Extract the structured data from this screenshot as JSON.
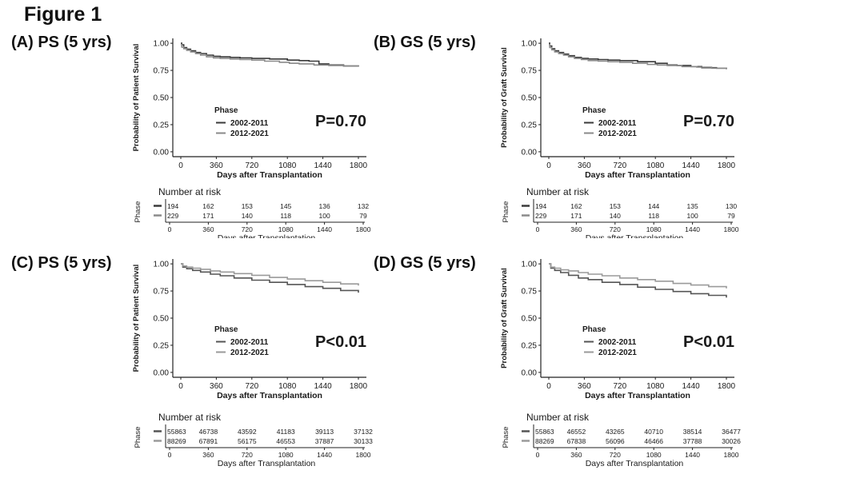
{
  "figure_title": "Figure 1",
  "chart_data": [
    {
      "type": "line",
      "panel_label": "(A) PS (5 yrs)",
      "ylabel": "Probability of Patient Survival",
      "xlabel": "Days after Transplantation",
      "xlim": [
        0,
        1800
      ],
      "ylim": [
        0,
        1
      ],
      "x_ticks": [
        "0",
        "360",
        "720",
        "1080",
        "1440",
        "1800"
      ],
      "y_ticks": [
        "0.00",
        "0.25",
        "0.50",
        "0.75",
        "1.00"
      ],
      "legend_title": "Phase",
      "p_value": "P=0.70",
      "series": [
        {
          "name": "2002-2011",
          "color": "#3a3a3a",
          "points": [
            [
              0,
              1.0
            ],
            [
              10,
              0.985
            ],
            [
              30,
              0.96
            ],
            [
              60,
              0.945
            ],
            [
              100,
              0.93
            ],
            [
              150,
              0.915
            ],
            [
              200,
              0.905
            ],
            [
              260,
              0.89
            ],
            [
              330,
              0.88
            ],
            [
              400,
              0.875
            ],
            [
              500,
              0.87
            ],
            [
              600,
              0.865
            ],
            [
              720,
              0.86
            ],
            [
              900,
              0.855
            ],
            [
              1080,
              0.845
            ],
            [
              1200,
              0.84
            ],
            [
              1300,
              0.835
            ],
            [
              1400,
              0.81
            ],
            [
              1500,
              0.8
            ],
            [
              1650,
              0.79
            ],
            [
              1800,
              0.785
            ]
          ]
        },
        {
          "name": "2012-2021",
          "color": "#8a8a8a",
          "points": [
            [
              0,
              0.99
            ],
            [
              10,
              0.965
            ],
            [
              30,
              0.95
            ],
            [
              60,
              0.935
            ],
            [
              100,
              0.92
            ],
            [
              150,
              0.905
            ],
            [
              200,
              0.89
            ],
            [
              260,
              0.875
            ],
            [
              330,
              0.865
            ],
            [
              400,
              0.86
            ],
            [
              500,
              0.855
            ],
            [
              600,
              0.85
            ],
            [
              720,
              0.845
            ],
            [
              850,
              0.835
            ],
            [
              1000,
              0.825
            ],
            [
              1100,
              0.815
            ],
            [
              1200,
              0.81
            ],
            [
              1350,
              0.8
            ],
            [
              1500,
              0.795
            ],
            [
              1650,
              0.79
            ],
            [
              1800,
              0.785
            ]
          ]
        }
      ],
      "risk_table": {
        "title": "Number at risk",
        "ylabel": "Phase",
        "xlabel": "Days after Transplantation",
        "ticks": [
          "0",
          "360",
          "720",
          "1080",
          "1440",
          "1800"
        ],
        "rows": [
          [
            "194",
            "162",
            "153",
            "145",
            "136",
            "132"
          ],
          [
            "229",
            "171",
            "140",
            "118",
            "100",
            "79"
          ]
        ]
      }
    },
    {
      "type": "line",
      "panel_label": "(B) GS (5 yrs)",
      "ylabel": "Probability of Graft Survival",
      "xlabel": "Days after Transplantation",
      "xlim": [
        0,
        1800
      ],
      "ylim": [
        0,
        1
      ],
      "x_ticks": [
        "0",
        "360",
        "720",
        "1080",
        "1440",
        "1800"
      ],
      "y_ticks": [
        "0.00",
        "0.25",
        "0.50",
        "0.75",
        "1.00"
      ],
      "legend_title": "Phase",
      "p_value": "P=0.70",
      "series": [
        {
          "name": "2002-2011",
          "color": "#3a3a3a",
          "points": [
            [
              0,
              1.0
            ],
            [
              10,
              0.975
            ],
            [
              30,
              0.95
            ],
            [
              60,
              0.93
            ],
            [
              100,
              0.915
            ],
            [
              150,
              0.9
            ],
            [
              200,
              0.885
            ],
            [
              260,
              0.87
            ],
            [
              330,
              0.86
            ],
            [
              400,
              0.855
            ],
            [
              500,
              0.85
            ],
            [
              600,
              0.845
            ],
            [
              720,
              0.84
            ],
            [
              900,
              0.83
            ],
            [
              1080,
              0.815
            ],
            [
              1200,
              0.8
            ],
            [
              1300,
              0.795
            ],
            [
              1440,
              0.785
            ],
            [
              1550,
              0.775
            ],
            [
              1700,
              0.77
            ],
            [
              1800,
              0.765
            ]
          ]
        },
        {
          "name": "2012-2021",
          "color": "#8a8a8a",
          "points": [
            [
              0,
              0.99
            ],
            [
              10,
              0.96
            ],
            [
              30,
              0.94
            ],
            [
              60,
              0.92
            ],
            [
              100,
              0.905
            ],
            [
              150,
              0.89
            ],
            [
              200,
              0.875
            ],
            [
              260,
              0.86
            ],
            [
              330,
              0.85
            ],
            [
              400,
              0.84
            ],
            [
              500,
              0.835
            ],
            [
              600,
              0.83
            ],
            [
              720,
              0.825
            ],
            [
              850,
              0.815
            ],
            [
              1000,
              0.805
            ],
            [
              1100,
              0.8
            ],
            [
              1200,
              0.795
            ],
            [
              1350,
              0.785
            ],
            [
              1500,
              0.78
            ],
            [
              1650,
              0.77
            ],
            [
              1800,
              0.76
            ]
          ]
        }
      ],
      "risk_table": {
        "title": "Number at risk",
        "ylabel": "Phase",
        "xlabel": "Days after Transplantation",
        "ticks": [
          "0",
          "360",
          "720",
          "1080",
          "1440",
          "1800"
        ],
        "rows": [
          [
            "194",
            "162",
            "153",
            "144",
            "135",
            "130"
          ],
          [
            "229",
            "171",
            "140",
            "118",
            "100",
            "79"
          ]
        ]
      }
    },
    {
      "type": "line",
      "panel_label": "(C) PS (5 yrs)",
      "ylabel": "Probability of Patient Survival",
      "xlabel": "Days after Transplantation",
      "xlim": [
        0,
        1800
      ],
      "ylim": [
        0,
        1
      ],
      "x_ticks": [
        "0",
        "360",
        "720",
        "1080",
        "1440",
        "1800"
      ],
      "y_ticks": [
        "0.00",
        "0.25",
        "0.50",
        "0.75",
        "1.00"
      ],
      "legend_title": "Phase",
      "p_value": "P<0.01",
      "series": [
        {
          "name": "2002-2011",
          "color": "#555555",
          "points": [
            [
              0,
              1.0
            ],
            [
              20,
              0.97
            ],
            [
              60,
              0.955
            ],
            [
              120,
              0.94
            ],
            [
              200,
              0.925
            ],
            [
              300,
              0.905
            ],
            [
              400,
              0.89
            ],
            [
              540,
              0.87
            ],
            [
              720,
              0.85
            ],
            [
              900,
              0.83
            ],
            [
              1080,
              0.81
            ],
            [
              1260,
              0.79
            ],
            [
              1440,
              0.775
            ],
            [
              1620,
              0.755
            ],
            [
              1800,
              0.735
            ]
          ]
        },
        {
          "name": "2012-2021",
          "color": "#9a9a9a",
          "points": [
            [
              0,
              1.0
            ],
            [
              20,
              0.98
            ],
            [
              60,
              0.97
            ],
            [
              120,
              0.96
            ],
            [
              200,
              0.95
            ],
            [
              300,
              0.935
            ],
            [
              400,
              0.925
            ],
            [
              540,
              0.91
            ],
            [
              720,
              0.895
            ],
            [
              900,
              0.875
            ],
            [
              1080,
              0.86
            ],
            [
              1260,
              0.845
            ],
            [
              1440,
              0.83
            ],
            [
              1620,
              0.815
            ],
            [
              1800,
              0.8
            ]
          ]
        }
      ],
      "risk_table": {
        "title": "Number at risk",
        "ylabel": "Phase",
        "xlabel": "Days after Transplantation",
        "ticks": [
          "0",
          "360",
          "720",
          "1080",
          "1440",
          "1800"
        ],
        "rows": [
          [
            "55863",
            "46738",
            "43592",
            "41183",
            "39113",
            "37132"
          ],
          [
            "88269",
            "67891",
            "56175",
            "46553",
            "37887",
            "30133"
          ]
        ]
      }
    },
    {
      "type": "line",
      "panel_label": "(D) GS (5 yrs)",
      "ylabel": "Probability of Graft Survival",
      "xlabel": "Days after Transplantation",
      "xlim": [
        0,
        1800
      ],
      "ylim": [
        0,
        1
      ],
      "x_ticks": [
        "0",
        "360",
        "720",
        "1080",
        "1440",
        "1800"
      ],
      "y_ticks": [
        "0.00",
        "0.25",
        "0.50",
        "0.75",
        "1.00"
      ],
      "legend_title": "Phase",
      "p_value": "P<0.01",
      "series": [
        {
          "name": "2002-2011",
          "color": "#555555",
          "points": [
            [
              0,
              1.0
            ],
            [
              20,
              0.96
            ],
            [
              60,
              0.94
            ],
            [
              120,
              0.92
            ],
            [
              200,
              0.895
            ],
            [
              300,
              0.87
            ],
            [
              400,
              0.855
            ],
            [
              540,
              0.83
            ],
            [
              720,
              0.81
            ],
            [
              900,
              0.785
            ],
            [
              1080,
              0.765
            ],
            [
              1260,
              0.745
            ],
            [
              1440,
              0.725
            ],
            [
              1620,
              0.71
            ],
            [
              1800,
              0.69
            ]
          ]
        },
        {
          "name": "2012-2021",
          "color": "#9a9a9a",
          "points": [
            [
              0,
              1.0
            ],
            [
              20,
              0.97
            ],
            [
              60,
              0.96
            ],
            [
              120,
              0.945
            ],
            [
              200,
              0.935
            ],
            [
              300,
              0.92
            ],
            [
              400,
              0.905
            ],
            [
              540,
              0.89
            ],
            [
              720,
              0.87
            ],
            [
              900,
              0.855
            ],
            [
              1080,
              0.84
            ],
            [
              1260,
              0.82
            ],
            [
              1440,
              0.805
            ],
            [
              1620,
              0.79
            ],
            [
              1800,
              0.775
            ]
          ]
        }
      ],
      "risk_table": {
        "title": "Number at risk",
        "ylabel": "Phase",
        "xlabel": "Days after Transplantation",
        "ticks": [
          "0",
          "360",
          "720",
          "1080",
          "1440",
          "1800"
        ],
        "rows": [
          [
            "55863",
            "46552",
            "43265",
            "40710",
            "38514",
            "36477"
          ],
          [
            "88269",
            "67838",
            "56096",
            "46466",
            "37788",
            "30026"
          ]
        ]
      }
    }
  ]
}
